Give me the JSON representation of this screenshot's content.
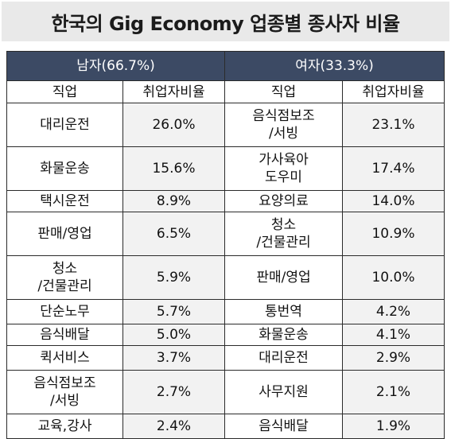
{
  "title": "한국의 Gig Economy 업종별 종사자 비율",
  "groups": {
    "male": "남자(66.7%)",
    "female": "여자(33.3%)"
  },
  "columns": {
    "job": "직업",
    "ratio": "취업자비율"
  },
  "rows": [
    {
      "m_job": [
        "대리운전"
      ],
      "m_ratio": "26.0%",
      "f_job": [
        "음식점보조",
        "/서빙"
      ],
      "f_ratio": "23.1%"
    },
    {
      "m_job": [
        "화물운송"
      ],
      "m_ratio": "15.6%",
      "f_job": [
        "가사육아",
        "도우미"
      ],
      "f_ratio": "17.4%"
    },
    {
      "m_job": [
        "택시운전"
      ],
      "m_ratio": "8.9%",
      "f_job": [
        "요양의료"
      ],
      "f_ratio": "14.0%"
    },
    {
      "m_job": [
        "판매/영업"
      ],
      "m_ratio": "6.5%",
      "f_job": [
        "청소",
        "/건물관리"
      ],
      "f_ratio": "10.9%"
    },
    {
      "m_job": [
        "청소",
        "/건물관리"
      ],
      "m_ratio": "5.9%",
      "f_job": [
        "판매/영업"
      ],
      "f_ratio": "10.0%"
    },
    {
      "m_job": [
        "단순노무"
      ],
      "m_ratio": "5.7%",
      "f_job": [
        "통번역"
      ],
      "f_ratio": "4.2%"
    },
    {
      "m_job": [
        "음식배달"
      ],
      "m_ratio": "5.0%",
      "f_job": [
        "화물운송"
      ],
      "f_ratio": "4.1%"
    },
    {
      "m_job": [
        "퀵서비스"
      ],
      "m_ratio": "3.7%",
      "f_job": [
        "대리운전"
      ],
      "f_ratio": "2.9%"
    },
    {
      "m_job": [
        "음식점보조",
        "/서빙"
      ],
      "m_ratio": "2.7%",
      "f_job": [
        "사무지원"
      ],
      "f_ratio": "2.1%"
    },
    {
      "m_job": [
        "교육,강사"
      ],
      "m_ratio": "2.4%",
      "f_job": [
        "음식배달"
      ],
      "f_ratio": "1.9%"
    }
  ]
}
